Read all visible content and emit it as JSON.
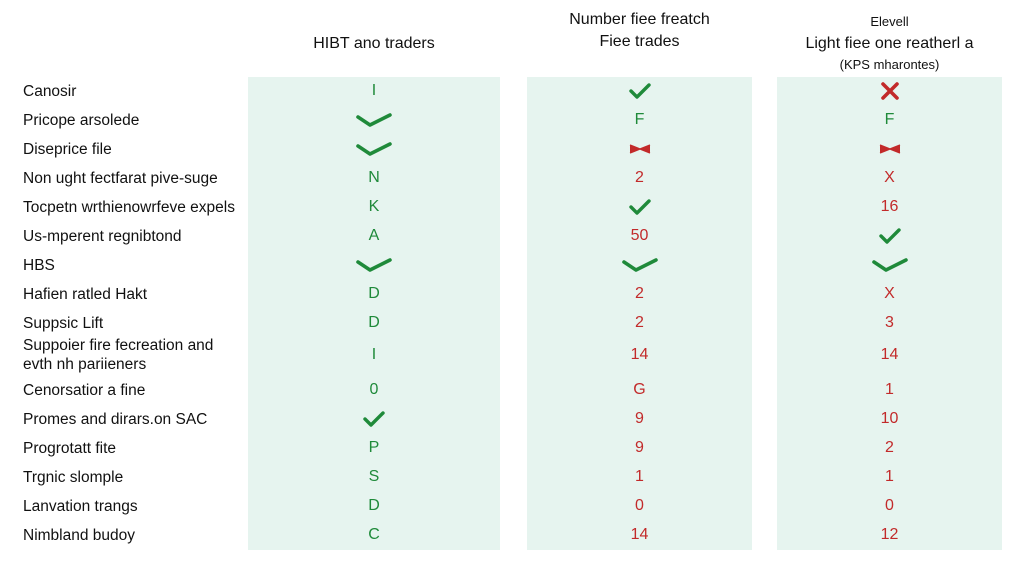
{
  "columns": [
    {
      "lines": [
        "HIBT ano traders"
      ]
    },
    {
      "lines": [
        "Number fiee freatch",
        "Fiee trades"
      ]
    },
    {
      "lines": [
        "Elevell",
        "Light fiee one reatherl a",
        "(KPS mharontes)"
      ]
    }
  ],
  "rows": [
    {
      "label": [
        "Canosir"
      ],
      "cells": [
        {
          "text": "I",
          "tone": "green"
        },
        {
          "icon": "check",
          "tone": "green"
        },
        {
          "icon": "cross-bold",
          "tone": "red"
        }
      ]
    },
    {
      "label": [
        "Pricope arsolede"
      ],
      "cells": [
        {
          "icon": "check-wide",
          "tone": "green"
        },
        {
          "text": "F",
          "tone": "green"
        },
        {
          "text": "F",
          "tone": "green"
        }
      ]
    },
    {
      "label": [
        "Diseprice file"
      ],
      "cells": [
        {
          "icon": "check-wide",
          "tone": "green"
        },
        {
          "icon": "cross-bowtie",
          "tone": "red"
        },
        {
          "icon": "cross-bowtie",
          "tone": "red"
        }
      ]
    },
    {
      "label": [
        "Non ught fectfarat pive-suge"
      ],
      "cells": [
        {
          "text": "N",
          "tone": "green"
        },
        {
          "text": "2",
          "tone": "red"
        },
        {
          "text": "X",
          "tone": "red"
        }
      ]
    },
    {
      "label": [
        "Tocpetn wrthienowrfeve expels"
      ],
      "cells": [
        {
          "text": "K",
          "tone": "green"
        },
        {
          "icon": "check",
          "tone": "green"
        },
        {
          "text": "16",
          "tone": "red"
        }
      ]
    },
    {
      "label": [
        "Us-mperent regnibtond"
      ],
      "cells": [
        {
          "text": "A",
          "tone": "green"
        },
        {
          "text": "50",
          "tone": "red"
        },
        {
          "icon": "check",
          "tone": "green"
        }
      ]
    },
    {
      "label": [
        "HBS"
      ],
      "cells": [
        {
          "icon": "check-wide",
          "tone": "green"
        },
        {
          "icon": "check-wide",
          "tone": "green"
        },
        {
          "icon": "check-wide",
          "tone": "green"
        }
      ]
    },
    {
      "label": [
        "Hafien ratled Hakt"
      ],
      "cells": [
        {
          "text": "D",
          "tone": "green"
        },
        {
          "text": "2",
          "tone": "red"
        },
        {
          "text": "X",
          "tone": "red"
        }
      ]
    },
    {
      "label": [
        "Suppsic Lift"
      ],
      "cells": [
        {
          "text": "D",
          "tone": "green"
        },
        {
          "text": "2",
          "tone": "red"
        },
        {
          "text": "3",
          "tone": "red"
        }
      ]
    },
    {
      "label": [
        "Suppoier fire fecreation and",
        "evth nh pariieners"
      ],
      "cells": [
        {
          "text": "I",
          "tone": "green"
        },
        {
          "text": "14",
          "tone": "red"
        },
        {
          "text": "14",
          "tone": "red"
        }
      ]
    },
    {
      "label": [
        "Cenorsatior a fine"
      ],
      "cells": [
        {
          "text": "0",
          "tone": "green"
        },
        {
          "text": "G",
          "tone": "red"
        },
        {
          "text": "1",
          "tone": "red"
        }
      ]
    },
    {
      "label": [
        "Promes and dirars.on SAC"
      ],
      "cells": [
        {
          "icon": "check",
          "tone": "green"
        },
        {
          "text": "9",
          "tone": "red"
        },
        {
          "text": "10",
          "tone": "red"
        }
      ]
    },
    {
      "label": [
        "Progrotatt fite"
      ],
      "cells": [
        {
          "text": "P",
          "tone": "green"
        },
        {
          "text": "9",
          "tone": "red"
        },
        {
          "text": "2",
          "tone": "red"
        }
      ]
    },
    {
      "label": [
        "Trgnic slomple"
      ],
      "cells": [
        {
          "text": "S",
          "tone": "green"
        },
        {
          "text": "1",
          "tone": "red"
        },
        {
          "text": "1",
          "tone": "red"
        }
      ]
    },
    {
      "label": [
        "Lanvation trangs"
      ],
      "cells": [
        {
          "text": "D",
          "tone": "green"
        },
        {
          "text": "0",
          "tone": "red"
        },
        {
          "text": "0",
          "tone": "red"
        }
      ]
    },
    {
      "label": [
        "Nimbland budoy"
      ],
      "cells": [
        {
          "text": "C",
          "tone": "green"
        },
        {
          "text": "14",
          "tone": "red"
        },
        {
          "text": "12",
          "tone": "red"
        }
      ]
    }
  ],
  "colors": {
    "panel": "#e6f4ef",
    "green": "#1f8a3a",
    "red": "#c22a2a"
  }
}
